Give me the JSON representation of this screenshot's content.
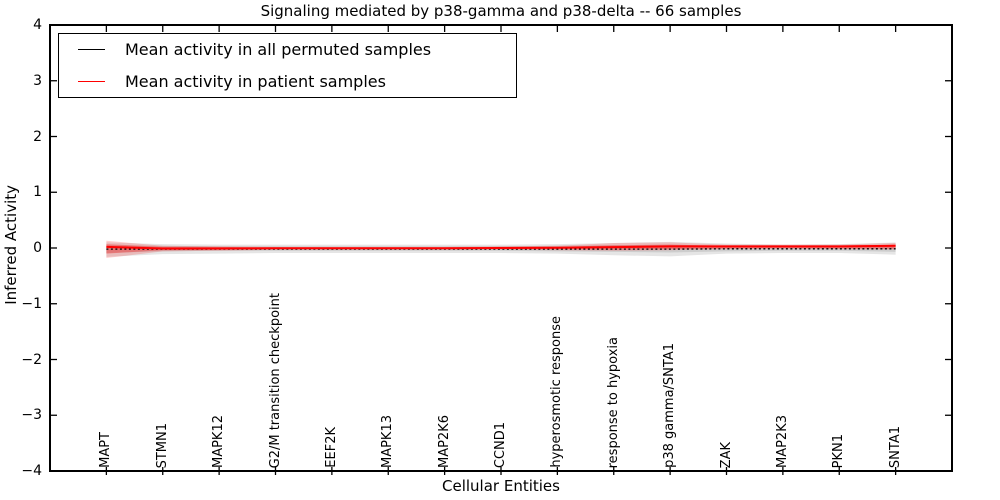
{
  "chart_data": {
    "type": "line",
    "title": "Signaling mediated by p38-gamma and p38-delta -- 66 samples",
    "xlabel": "Cellular Entities",
    "ylabel": "Inferred Activity",
    "xlim": [
      -1,
      15
    ],
    "ylim": [
      -4,
      4
    ],
    "grid": false,
    "legend_position": "upper left",
    "yticks": [
      4,
      3,
      2,
      1,
      0,
      -1,
      -2,
      -3,
      -4
    ],
    "ytick_labels": [
      "4",
      "3",
      "2",
      "1",
      "0",
      "−1",
      "−2",
      "−3",
      "−4"
    ],
    "categories": [
      "MAPT",
      "STMN1",
      "MAPK12",
      "G2/M transition checkpoint",
      "EEF2K",
      "MAPK13",
      "MAP2K6",
      "CCND1",
      "hyperosmotic response",
      "response to hypoxia",
      "p38 gamma/SNTA1",
      "ZAK",
      "MAP2K3",
      "PKN1",
      "SNTA1"
    ],
    "series": [
      {
        "name": "Mean activity in all permuted samples",
        "color": "#000000",
        "line_style": "dotted",
        "values": [
          -0.02,
          -0.02,
          -0.02,
          -0.02,
          -0.02,
          -0.02,
          -0.02,
          -0.02,
          -0.02,
          -0.02,
          -0.02,
          -0.015,
          -0.015,
          -0.015,
          -0.015
        ]
      },
      {
        "name": "Mean activity in patient samples",
        "color": "#ff0000",
        "line_style": "solid",
        "values": [
          0.02,
          -0.01,
          -0.01,
          -0.005,
          -0.005,
          -0.005,
          -0.005,
          0.0,
          0.005,
          0.015,
          0.03,
          0.03,
          0.03,
          0.03,
          0.04
        ]
      }
    ],
    "bands": [
      {
        "name": "permuted-band-outer",
        "color": "rgba(0,0,0,0.10)",
        "upper": [
          0.1,
          0.07,
          0.06,
          0.06,
          0.06,
          0.06,
          0.06,
          0.06,
          0.07,
          0.09,
          0.11,
          0.08,
          0.06,
          0.07,
          0.1
        ],
        "lower": [
          -0.16,
          -0.11,
          -0.1,
          -0.09,
          -0.09,
          -0.09,
          -0.09,
          -0.09,
          -0.1,
          -0.13,
          -0.15,
          -0.1,
          -0.09,
          -0.09,
          -0.12
        ]
      },
      {
        "name": "permuted-band-inner",
        "color": "rgba(0,0,0,0.10)",
        "upper": [
          0.05,
          0.04,
          0.03,
          0.03,
          0.03,
          0.03,
          0.03,
          0.03,
          0.04,
          0.05,
          0.06,
          0.04,
          0.03,
          0.04,
          0.05
        ],
        "lower": [
          -0.09,
          -0.06,
          -0.05,
          -0.05,
          -0.05,
          -0.05,
          -0.05,
          -0.05,
          -0.06,
          -0.07,
          -0.08,
          -0.06,
          -0.05,
          -0.05,
          -0.07
        ]
      },
      {
        "name": "patient-band-outer",
        "color": "rgba(255,0,0,0.18)",
        "upper": [
          0.13,
          0.04,
          0.03,
          0.02,
          0.02,
          0.02,
          0.02,
          0.03,
          0.04,
          0.09,
          0.1,
          0.06,
          0.06,
          0.06,
          0.09
        ],
        "lower": [
          -0.18,
          -0.06,
          -0.05,
          -0.03,
          -0.03,
          -0.03,
          -0.03,
          -0.03,
          -0.04,
          -0.05,
          -0.04,
          -0.02,
          -0.01,
          -0.02,
          -0.03
        ]
      },
      {
        "name": "patient-band-inner",
        "color": "rgba(255,0,0,0.30)",
        "upper": [
          0.07,
          0.02,
          0.02,
          0.01,
          0.01,
          0.01,
          0.01,
          0.02,
          0.02,
          0.05,
          0.06,
          0.04,
          0.04,
          0.04,
          0.06
        ],
        "lower": [
          -0.1,
          -0.04,
          -0.03,
          -0.02,
          -0.02,
          -0.02,
          -0.02,
          -0.02,
          -0.02,
          -0.03,
          -0.02,
          -0.01,
          -0.005,
          -0.01,
          -0.015
        ]
      }
    ]
  }
}
